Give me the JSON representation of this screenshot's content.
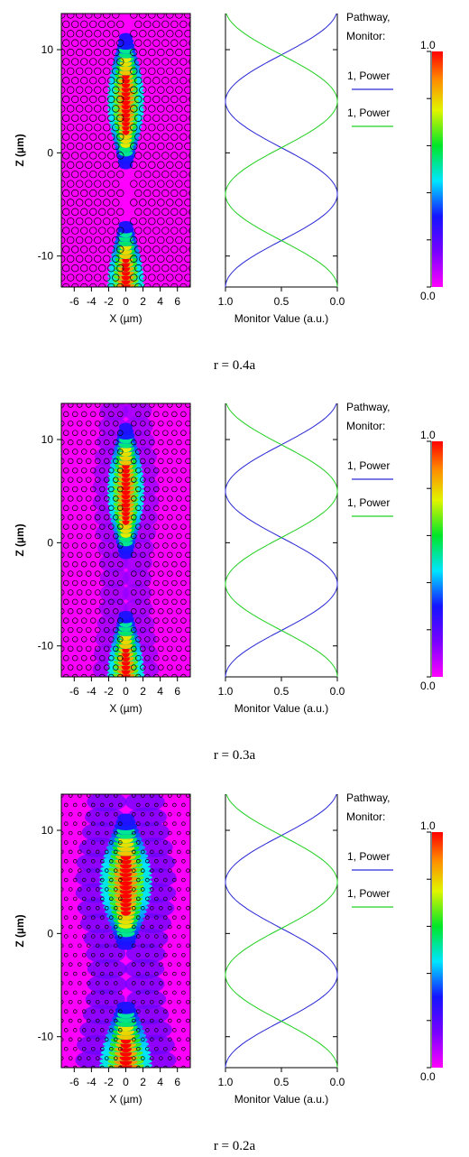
{
  "panels": [
    {
      "caption": "r = 0.4a",
      "field": {
        "hole_ratio": 0.4
      },
      "chart_data": [
        {
          "type": "heatmap",
          "xlabel": "X (µm)",
          "ylabel": "Z (µm)",
          "xlim": [
            -7.5,
            7.5
          ],
          "ylim": [
            -13,
            13.5
          ],
          "xticks": [
            -6,
            -4,
            -2,
            0,
            2,
            4,
            6
          ],
          "xticklabels": [
            "-6",
            "-4",
            "-2",
            "0",
            "2",
            "4",
            "6"
          ],
          "yticks": [
            -10,
            0,
            10
          ],
          "yticklabels": [
            "-10",
            "0",
            "10"
          ]
        },
        {
          "type": "line",
          "xlabel": "Monitor Value (a.u.)",
          "xlim": [
            1.0,
            0.0
          ],
          "xticks": [
            1.0,
            0.5,
            0.0
          ],
          "xticklabels": [
            "1.0",
            "0.5",
            "0.0"
          ],
          "legend_title": [
            "Pathway,",
            "Monitor:"
          ],
          "series": [
            {
              "name": "1, Power",
              "color": "#2a2ad6",
              "shape": "cos"
            },
            {
              "name": "1, Power",
              "color": "#22d022",
              "shape": "sin2"
            }
          ]
        },
        {
          "type": "colorbar",
          "range": [
            0.0,
            1.0
          ],
          "labels": {
            "top": "1.0",
            "bottom": "0.0"
          }
        }
      ]
    },
    {
      "caption": "r = 0.3a",
      "field": {
        "hole_ratio": 0.3
      },
      "chart_data": [
        {
          "type": "heatmap",
          "xlabel": "X (µm)",
          "ylabel": "Z (µm)",
          "xlim": [
            -7.5,
            7.5
          ],
          "ylim": [
            -13,
            13.5
          ],
          "xticks": [
            -6,
            -4,
            -2,
            0,
            2,
            4,
            6
          ],
          "xticklabels": [
            "-6",
            "-4",
            "-2",
            "0",
            "2",
            "4",
            "6"
          ],
          "yticks": [
            -10,
            0,
            10
          ],
          "yticklabels": [
            "-10",
            "0",
            "10"
          ]
        },
        {
          "type": "line",
          "xlabel": "Monitor Value (a.u.)",
          "xlim": [
            1.0,
            0.0
          ],
          "xticks": [
            1.0,
            0.5,
            0.0
          ],
          "xticklabels": [
            "1.0",
            "0.5",
            "0.0"
          ],
          "legend_title": [
            "Pathway,",
            "Monitor:"
          ],
          "series": [
            {
              "name": "1, Power",
              "color": "#2a2ad6",
              "shape": "cos"
            },
            {
              "name": "1, Power",
              "color": "#22d022",
              "shape": "sin2"
            }
          ]
        },
        {
          "type": "colorbar",
          "range": [
            0.0,
            1.0
          ],
          "labels": {
            "top": "1.0",
            "bottom": "0.0"
          }
        }
      ]
    },
    {
      "caption": "r = 0.2a",
      "field": {
        "hole_ratio": 0.2
      },
      "chart_data": [
        {
          "type": "heatmap",
          "xlabel": "X (µm)",
          "ylabel": "Z (µm)",
          "xlim": [
            -7.5,
            7.5
          ],
          "ylim": [
            -13,
            13.5
          ],
          "xticks": [
            -6,
            -4,
            -2,
            0,
            2,
            4,
            6
          ],
          "xticklabels": [
            "-6",
            "-4",
            "-2",
            "0",
            "2",
            "4",
            "6"
          ],
          "yticks": [
            -10,
            0,
            10
          ],
          "yticklabels": [
            "-10",
            "0",
            "10"
          ]
        },
        {
          "type": "line",
          "xlabel": "Monitor Value (a.u.)",
          "xlim": [
            1.0,
            0.0
          ],
          "xticks": [
            1.0,
            0.5,
            0.0
          ],
          "xticklabels": [
            "1.0",
            "0.5",
            "0.0"
          ],
          "legend_title": [
            "Pathway,",
            "Monitor:"
          ],
          "series": [
            {
              "name": "1, Power",
              "color": "#2a2ad6",
              "shape": "cos"
            },
            {
              "name": "1, Power",
              "color": "#22d022",
              "shape": "sin2"
            }
          ]
        },
        {
          "type": "colorbar",
          "range": [
            0.0,
            1.0
          ],
          "labels": {
            "top": "1.0",
            "bottom": "0.0"
          }
        }
      ]
    }
  ]
}
